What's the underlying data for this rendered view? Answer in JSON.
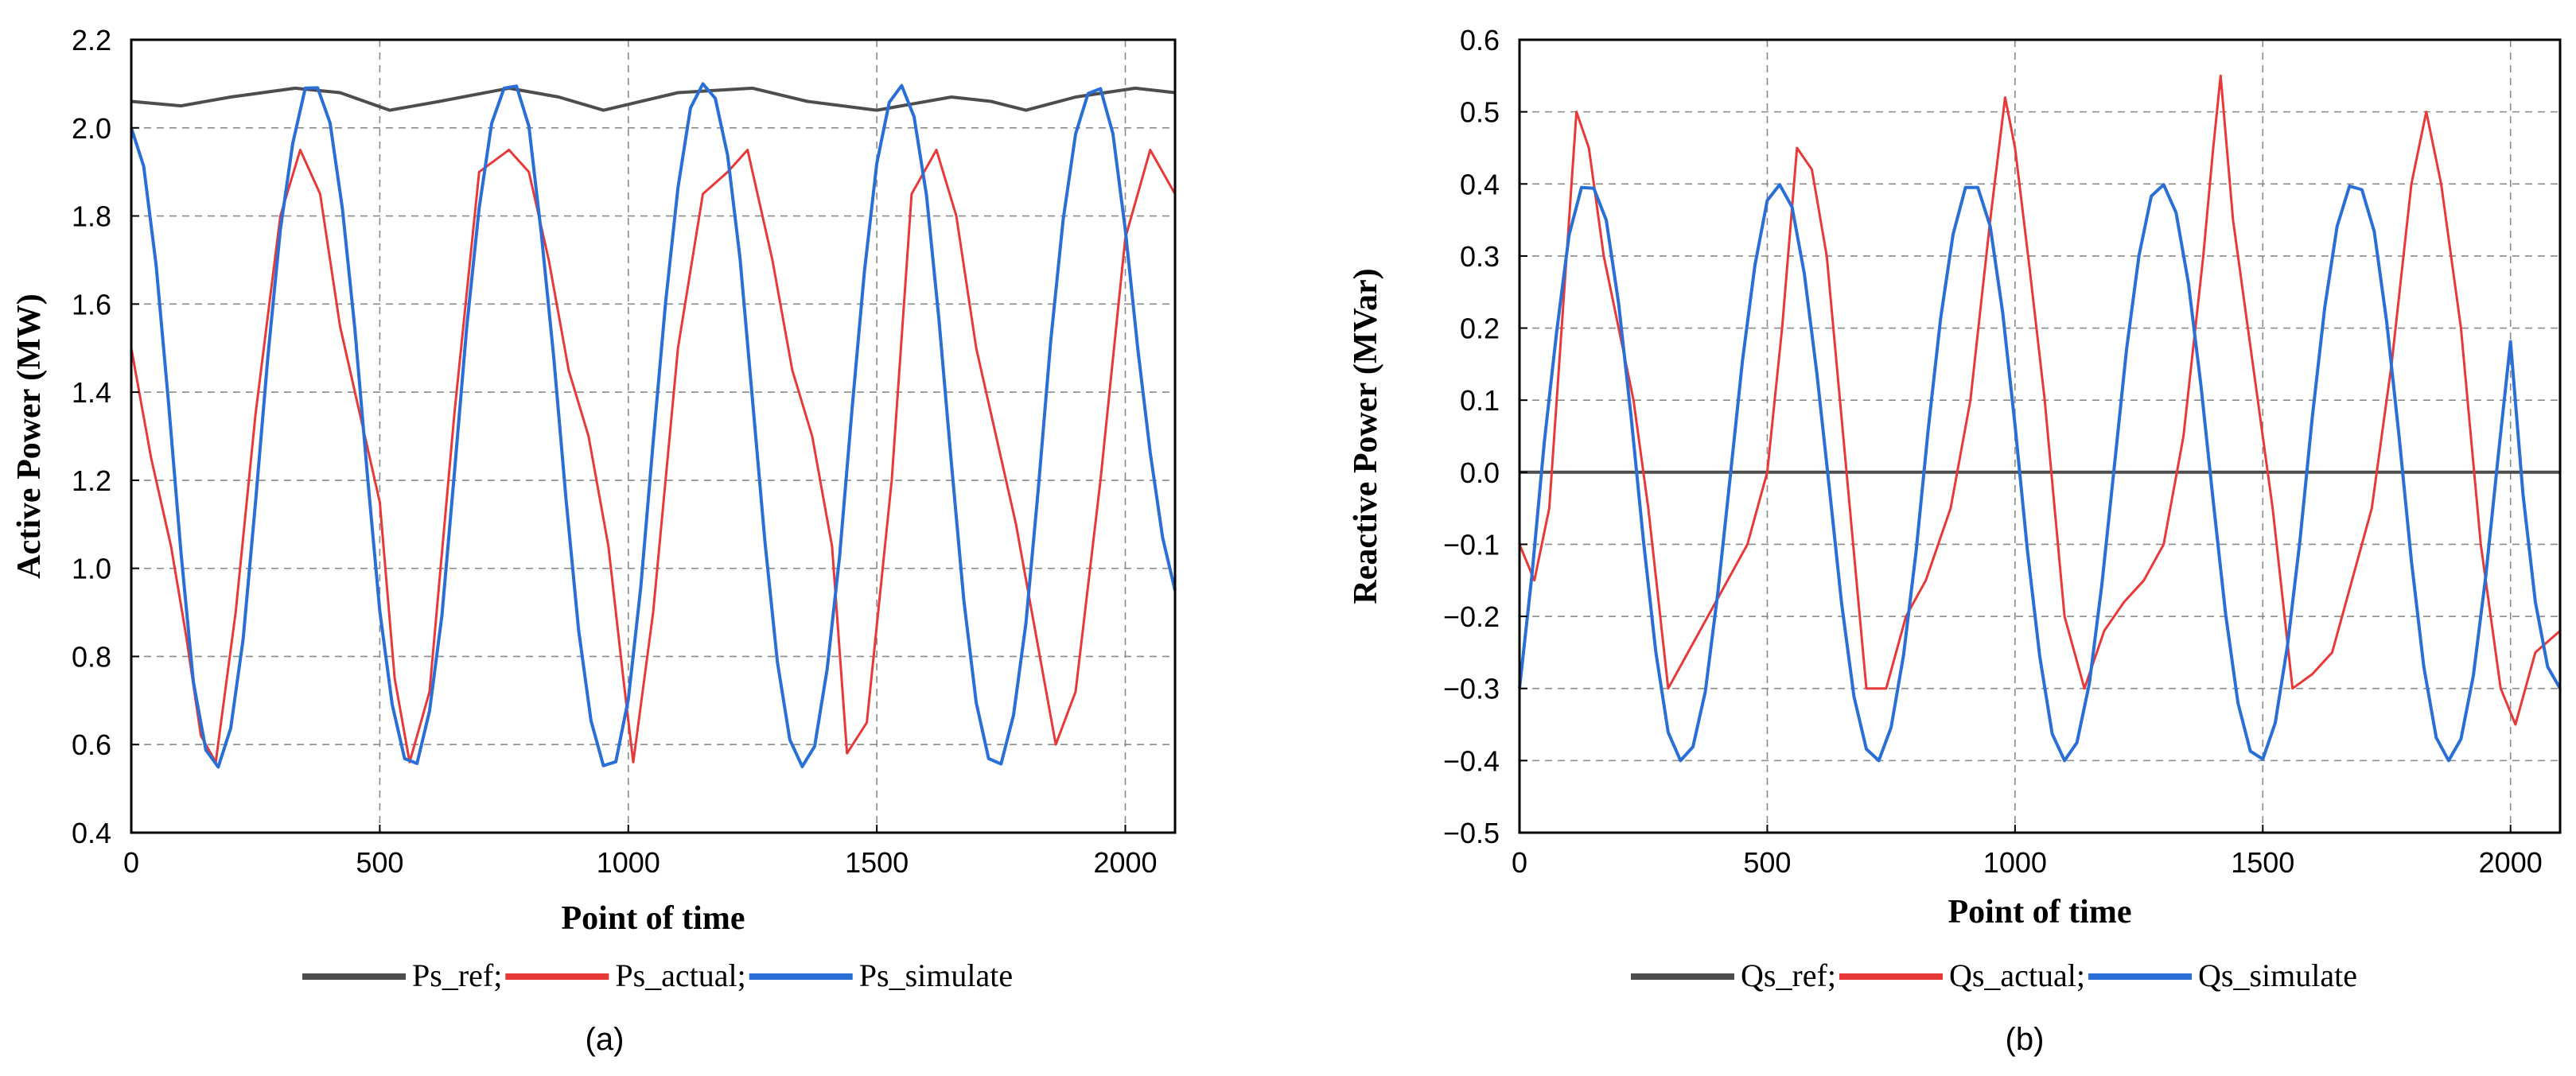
{
  "chart_data": [
    {
      "id": "a",
      "type": "line",
      "caption": "(a)",
      "xlabel": "Point of time",
      "ylabel": "Active Power (MW)",
      "xlim": [
        0,
        2100
      ],
      "ylim": [
        0.4,
        2.2
      ],
      "xticks": [
        0,
        500,
        1000,
        1500,
        2000
      ],
      "yticks": [
        0.4,
        0.6,
        0.8,
        1.0,
        1.2,
        1.4,
        1.6,
        1.8,
        2.0,
        2.2
      ],
      "yticklabels": [
        "0.4",
        "0.6",
        "0.8",
        "1.0",
        "1.2",
        "1.4",
        "1.6",
        "1.8",
        "2.0",
        "2.2"
      ],
      "grid": true,
      "legend": [
        "Ps_ref;",
        "Ps_actual;",
        "Ps_simulate"
      ],
      "series": [
        {
          "name": "Ps_ref",
          "color": "#4d4d4d",
          "x": [
            0,
            100,
            200,
            330,
            420,
            520,
            620,
            760,
            860,
            950,
            1100,
            1250,
            1360,
            1500,
            1650,
            1730,
            1800,
            1900,
            2020,
            2100
          ],
          "y": [
            2.06,
            2.05,
            2.07,
            2.09,
            2.08,
            2.04,
            2.06,
            2.09,
            2.07,
            2.04,
            2.08,
            2.09,
            2.06,
            2.04,
            2.07,
            2.06,
            2.04,
            2.07,
            2.09,
            2.08
          ]
        },
        {
          "name": "Ps_actual",
          "color": "#e83838",
          "x": [
            0,
            40,
            80,
            110,
            140,
            170,
            210,
            250,
            300,
            340,
            380,
            420,
            460,
            500,
            530,
            560,
            600,
            650,
            700,
            760,
            800,
            840,
            880,
            920,
            960,
            990,
            1010,
            1050,
            1100,
            1150,
            1200,
            1240,
            1290,
            1330,
            1370,
            1410,
            1440,
            1480,
            1530,
            1570,
            1620,
            1660,
            1700,
            1740,
            1780,
            1820,
            1860,
            1900,
            1950,
            2000,
            2050,
            2100
          ],
          "y": [
            1.5,
            1.25,
            1.05,
            0.85,
            0.62,
            0.56,
            0.9,
            1.35,
            1.8,
            1.95,
            1.85,
            1.55,
            1.35,
            1.15,
            0.75,
            0.56,
            0.72,
            1.35,
            1.9,
            1.95,
            1.9,
            1.7,
            1.45,
            1.3,
            1.05,
            0.75,
            0.56,
            0.9,
            1.5,
            1.85,
            1.9,
            1.95,
            1.7,
            1.45,
            1.3,
            1.05,
            0.58,
            0.65,
            1.2,
            1.85,
            1.95,
            1.8,
            1.5,
            1.3,
            1.1,
            0.85,
            0.6,
            0.72,
            1.2,
            1.75,
            1.95,
            1.85
          ]
        },
        {
          "name": "Ps_simulate",
          "color": "#2a6fd6",
          "x": [
            0,
            25,
            50,
            75,
            100,
            125,
            150,
            175,
            200,
            225,
            250,
            275,
            300,
            325,
            350,
            375,
            400,
            425,
            450,
            475,
            500,
            525,
            550,
            575,
            600,
            625,
            650,
            675,
            700,
            725,
            750,
            775,
            800,
            825,
            850,
            875,
            900,
            925,
            950,
            975,
            1000,
            1025,
            1050,
            1075,
            1100,
            1125,
            1150,
            1175,
            1200,
            1225,
            1250,
            1275,
            1300,
            1325,
            1350,
            1375,
            1400,
            1425,
            1450,
            1475,
            1500,
            1525,
            1550,
            1575,
            1600,
            1625,
            1650,
            1675,
            1700,
            1725,
            1750,
            1775,
            1800,
            1825,
            1850,
            1875,
            1900,
            1925,
            1950,
            1975,
            2000,
            2025,
            2050,
            2075,
            2100
          ],
          "y": [
            2.0,
            1.913,
            1.689,
            1.375,
            1.036,
            0.742,
            0.588,
            0.549,
            0.637,
            0.839,
            1.15,
            1.482,
            1.769,
            1.965,
            2.09,
            2.091,
            2.011,
            1.815,
            1.543,
            1.212,
            0.903,
            0.691,
            0.568,
            0.557,
            0.676,
            0.893,
            1.215,
            1.548,
            1.818,
            2.01,
            2.09,
            2.095,
            2.004,
            1.76,
            1.48,
            1.153,
            0.86,
            0.654,
            0.552,
            0.561,
            0.703,
            0.956,
            1.286,
            1.603,
            1.864,
            2.045,
            2.1,
            2.067,
            1.937,
            1.702,
            1.38,
            1.059,
            0.787,
            0.611,
            0.55,
            0.596,
            0.771,
            1.026,
            1.359,
            1.673,
            1.919,
            2.058,
            2.096,
            2.025,
            1.847,
            1.566,
            1.239,
            0.928,
            0.695,
            0.568,
            0.556,
            0.667,
            0.876,
            1.182,
            1.517,
            1.792,
            1.986,
            2.078,
            2.089,
            1.987,
            1.769,
            1.5,
            1.263,
            1.07,
            0.95
          ]
        }
      ]
    },
    {
      "id": "b",
      "type": "line",
      "caption": "(b)",
      "xlabel": "Point of time",
      "ylabel": "Reactive Power (MVar)",
      "xlim": [
        0,
        2100
      ],
      "ylim": [
        -0.5,
        0.6
      ],
      "xticks": [
        0,
        500,
        1000,
        1500,
        2000
      ],
      "yticks": [
        -0.5,
        -0.4,
        -0.3,
        -0.2,
        -0.1,
        0.0,
        0.1,
        0.2,
        0.3,
        0.4,
        0.5,
        0.6
      ],
      "yticklabels": [
        "−0.5",
        "−0.4",
        "−0.3",
        "−0.2",
        "−0.1",
        "0.0",
        "0.1",
        "0.2",
        "0.3",
        "0.4",
        "0.5",
        "0.6"
      ],
      "grid": true,
      "legend": [
        "Qs_ref;",
        "Qs_actual;",
        "Qs_simulate"
      ],
      "series": [
        {
          "name": "Qs_ref",
          "color": "#4d4d4d",
          "x": [
            0,
            2100
          ],
          "y": [
            0.0,
            0.0
          ]
        },
        {
          "name": "Qs_actual",
          "color": "#e83838",
          "x": [
            0,
            30,
            60,
            90,
            115,
            140,
            170,
            200,
            230,
            260,
            300,
            340,
            380,
            420,
            460,
            500,
            530,
            560,
            590,
            620,
            660,
            700,
            740,
            780,
            820,
            870,
            910,
            950,
            980,
            1000,
            1030,
            1060,
            1100,
            1140,
            1180,
            1220,
            1260,
            1300,
            1340,
            1380,
            1400,
            1415,
            1440,
            1480,
            1520,
            1560,
            1600,
            1640,
            1680,
            1720,
            1760,
            1800,
            1830,
            1860,
            1900,
            1940,
            1980,
            2010,
            2050,
            2100
          ],
          "y": [
            -0.1,
            -0.15,
            -0.05,
            0.25,
            0.5,
            0.45,
            0.3,
            0.2,
            0.1,
            -0.05,
            -0.3,
            -0.25,
            -0.2,
            -0.15,
            -0.1,
            0.0,
            0.2,
            0.45,
            0.42,
            0.3,
            0.0,
            -0.3,
            -0.3,
            -0.2,
            -0.15,
            -0.05,
            0.1,
            0.35,
            0.52,
            0.45,
            0.28,
            0.1,
            -0.2,
            -0.3,
            -0.22,
            -0.18,
            -0.15,
            -0.1,
            0.05,
            0.3,
            0.45,
            0.55,
            0.35,
            0.15,
            -0.05,
            -0.3,
            -0.28,
            -0.25,
            -0.15,
            -0.05,
            0.15,
            0.4,
            0.5,
            0.4,
            0.2,
            -0.1,
            -0.3,
            -0.35,
            -0.25,
            -0.22
          ]
        },
        {
          "name": "Qs_simulate",
          "color": "#2a6fd6",
          "x": [
            0,
            25,
            50,
            75,
            100,
            125,
            150,
            175,
            200,
            225,
            250,
            275,
            300,
            325,
            350,
            375,
            400,
            425,
            450,
            475,
            500,
            525,
            550,
            575,
            600,
            625,
            650,
            675,
            700,
            725,
            750,
            775,
            800,
            825,
            850,
            875,
            900,
            925,
            950,
            975,
            1000,
            1025,
            1050,
            1075,
            1100,
            1125,
            1150,
            1175,
            1200,
            1225,
            1250,
            1275,
            1300,
            1325,
            1350,
            1375,
            1400,
            1425,
            1450,
            1475,
            1500,
            1525,
            1550,
            1575,
            1600,
            1625,
            1650,
            1675,
            1700,
            1725,
            1750,
            1775,
            1800,
            1825,
            1850,
            1875,
            1900,
            1925,
            1950,
            1975,
            2000,
            2025,
            2050,
            2075,
            2100
          ],
          "y": [
            -0.3,
            -0.143,
            0.041,
            0.195,
            0.329,
            0.395,
            0.394,
            0.35,
            0.234,
            0.079,
            -0.094,
            -0.249,
            -0.361,
            -0.4,
            -0.381,
            -0.304,
            -0.169,
            -0.008,
            0.155,
            0.287,
            0.377,
            0.399,
            0.368,
            0.275,
            0.138,
            -0.02,
            -0.182,
            -0.311,
            -0.384,
            -0.4,
            -0.354,
            -0.254,
            -0.112,
            0.061,
            0.214,
            0.33,
            0.395,
            0.395,
            0.341,
            0.222,
            0.065,
            -0.108,
            -0.256,
            -0.363,
            -0.4,
            -0.375,
            -0.293,
            -0.157,
            0.005,
            0.17,
            0.3,
            0.383,
            0.399,
            0.36,
            0.262,
            0.122,
            -0.04,
            -0.197,
            -0.32,
            -0.387,
            -0.398,
            -0.348,
            -0.24,
            -0.095,
            0.077,
            0.228,
            0.341,
            0.397,
            0.392,
            0.334,
            0.209,
            0.05,
            -0.123,
            -0.27,
            -0.368,
            -0.4,
            -0.37,
            -0.282,
            -0.144,
            0.021,
            0.181,
            -0.03,
            -0.18,
            -0.27,
            -0.3
          ]
        }
      ]
    }
  ]
}
